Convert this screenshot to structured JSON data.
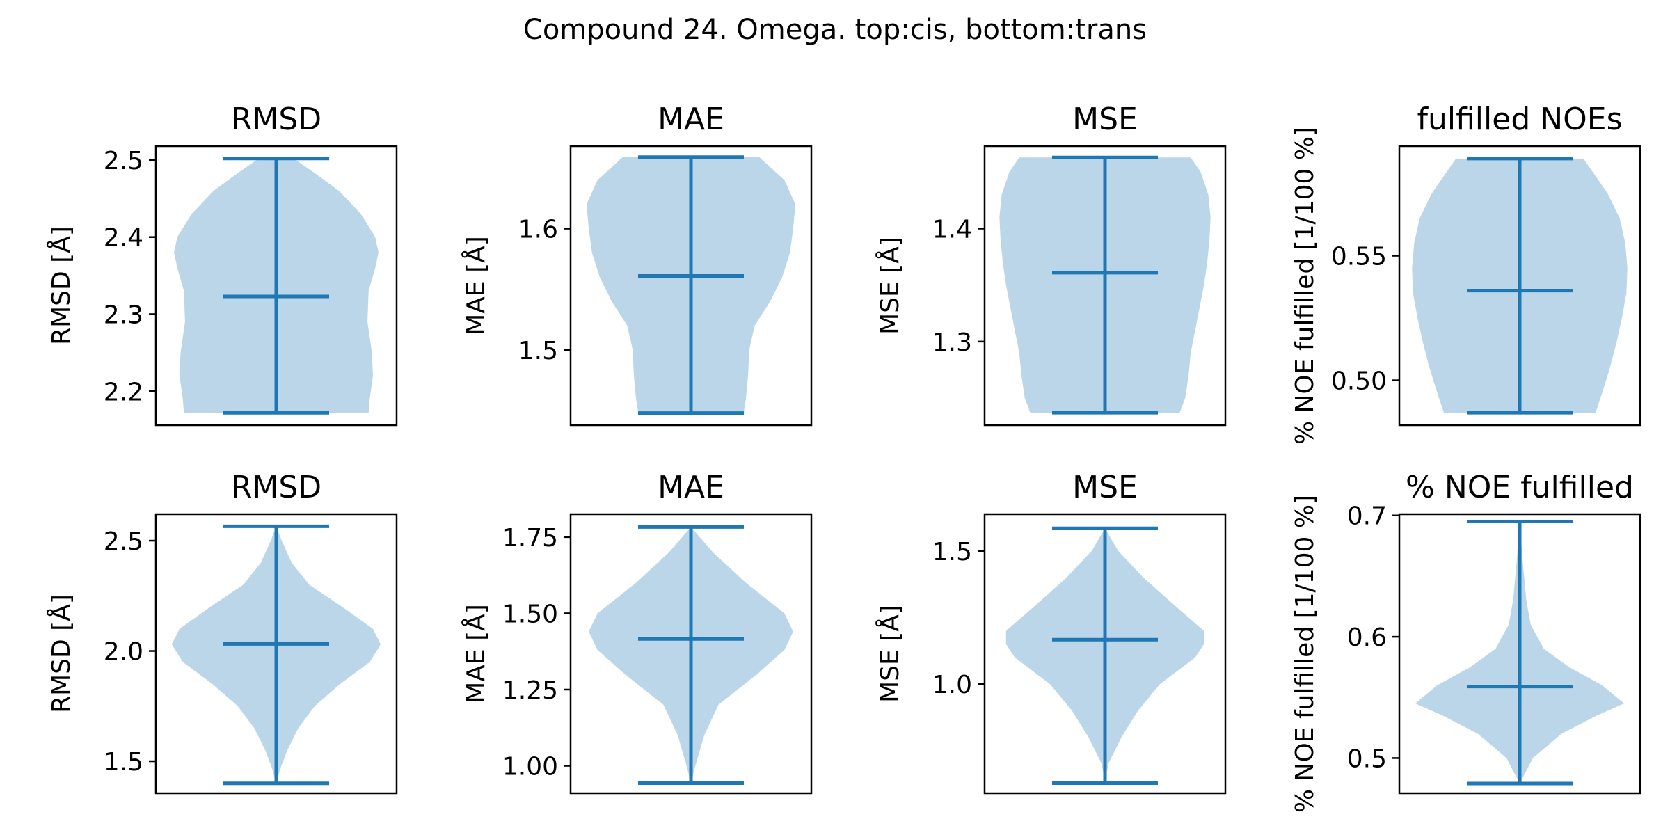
{
  "figure": {
    "title": "Compound 24. Omega. top:cis, bottom:trans"
  },
  "style": {
    "violin_fill": "#1f77b4",
    "violin_fill_opacity": 0.3,
    "line_color": "#1f77b4",
    "axes_color": "#000000"
  },
  "chart_data": [
    {
      "type": "violin",
      "row": "top",
      "title": "RMSD",
      "ylabel": "RMSD [Å]",
      "ylim": [
        2.156,
        2.518
      ],
      "yticks": [
        2.2,
        2.3,
        2.4,
        2.5
      ],
      "ytick_labels": [
        "2.2",
        "2.3",
        "2.4",
        "2.5"
      ],
      "min": 2.172,
      "max": 2.502,
      "mean": 2.323,
      "density": [
        [
          2.172,
          0.84
        ],
        [
          2.19,
          0.85
        ],
        [
          2.22,
          0.88
        ],
        [
          2.25,
          0.87
        ],
        [
          2.29,
          0.83
        ],
        [
          2.33,
          0.84
        ],
        [
          2.36,
          0.9
        ],
        [
          2.38,
          0.93
        ],
        [
          2.4,
          0.9
        ],
        [
          2.43,
          0.77
        ],
        [
          2.46,
          0.57
        ],
        [
          2.48,
          0.38
        ],
        [
          2.502,
          0.16
        ]
      ]
    },
    {
      "type": "violin",
      "row": "top",
      "title": "MAE",
      "ylabel": "MAE [Å]",
      "ylim": [
        1.438,
        1.668
      ],
      "yticks": [
        1.5,
        1.6
      ],
      "ytick_labels": [
        "1.5",
        "1.6"
      ],
      "min": 1.448,
      "max": 1.659,
      "mean": 1.561,
      "density": [
        [
          1.448,
          0.48
        ],
        [
          1.46,
          0.5
        ],
        [
          1.48,
          0.52
        ],
        [
          1.5,
          0.53
        ],
        [
          1.52,
          0.58
        ],
        [
          1.54,
          0.72
        ],
        [
          1.56,
          0.83
        ],
        [
          1.58,
          0.9
        ],
        [
          1.6,
          0.93
        ],
        [
          1.62,
          0.95
        ],
        [
          1.64,
          0.85
        ],
        [
          1.659,
          0.62
        ]
      ]
    },
    {
      "type": "violin",
      "row": "top",
      "title": "MSE",
      "ylabel": "MSE [Å]",
      "ylim": [
        1.226,
        1.473
      ],
      "yticks": [
        1.3,
        1.4
      ],
      "ytick_labels": [
        "1.3",
        "1.4"
      ],
      "min": 1.237,
      "max": 1.463,
      "mean": 1.361,
      "density": [
        [
          1.237,
          0.68
        ],
        [
          1.25,
          0.73
        ],
        [
          1.27,
          0.76
        ],
        [
          1.29,
          0.78
        ],
        [
          1.31,
          0.82
        ],
        [
          1.33,
          0.86
        ],
        [
          1.35,
          0.9
        ],
        [
          1.37,
          0.93
        ],
        [
          1.39,
          0.95
        ],
        [
          1.41,
          0.96
        ],
        [
          1.43,
          0.94
        ],
        [
          1.45,
          0.87
        ],
        [
          1.463,
          0.78
        ]
      ]
    },
    {
      "type": "violin",
      "row": "top",
      "title": "fulfilled NOEs",
      "ylabel": "% NOE fulfilled [1/100 %]",
      "ylim": [
        0.482,
        0.594
      ],
      "yticks": [
        0.5,
        0.55
      ],
      "ytick_labels": [
        "0.50",
        "0.55"
      ],
      "min": 0.487,
      "max": 0.589,
      "mean": 0.536,
      "density": [
        [
          0.487,
          0.69
        ],
        [
          0.495,
          0.75
        ],
        [
          0.505,
          0.82
        ],
        [
          0.515,
          0.88
        ],
        [
          0.525,
          0.93
        ],
        [
          0.535,
          0.97
        ],
        [
          0.545,
          0.98
        ],
        [
          0.555,
          0.96
        ],
        [
          0.565,
          0.91
        ],
        [
          0.575,
          0.8
        ],
        [
          0.589,
          0.58
        ]
      ]
    },
    {
      "type": "violin",
      "row": "bottom",
      "title": "RMSD",
      "ylabel": "RMSD [Å]",
      "ylim": [
        1.355,
        2.62
      ],
      "yticks": [
        1.5,
        2.0,
        2.5
      ],
      "ytick_labels": [
        "1.5",
        "2.0",
        "2.5"
      ],
      "min": 1.4,
      "max": 2.565,
      "mean": 2.032,
      "density": [
        [
          1.4,
          0.0
        ],
        [
          1.47,
          0.04
        ],
        [
          1.55,
          0.1
        ],
        [
          1.65,
          0.2
        ],
        [
          1.75,
          0.35
        ],
        [
          1.85,
          0.58
        ],
        [
          1.95,
          0.85
        ],
        [
          2.03,
          0.95
        ],
        [
          2.1,
          0.88
        ],
        [
          2.2,
          0.6
        ],
        [
          2.3,
          0.3
        ],
        [
          2.4,
          0.14
        ],
        [
          2.5,
          0.05
        ],
        [
          2.565,
          0.0
        ]
      ]
    },
    {
      "type": "violin",
      "row": "bottom",
      "title": "MAE",
      "ylabel": "MAE [Å]",
      "ylim": [
        0.91,
        1.825
      ],
      "yticks": [
        1.0,
        1.25,
        1.5,
        1.75
      ],
      "ytick_labels": [
        "1.00",
        "1.25",
        "1.50",
        "1.75"
      ],
      "min": 0.943,
      "max": 1.783,
      "mean": 1.416,
      "density": [
        [
          0.943,
          0.0
        ],
        [
          1.0,
          0.04
        ],
        [
          1.1,
          0.12
        ],
        [
          1.2,
          0.25
        ],
        [
          1.3,
          0.6
        ],
        [
          1.38,
          0.85
        ],
        [
          1.44,
          0.93
        ],
        [
          1.5,
          0.85
        ],
        [
          1.6,
          0.5
        ],
        [
          1.7,
          0.2
        ],
        [
          1.783,
          0.0
        ]
      ]
    },
    {
      "type": "violin",
      "row": "bottom",
      "title": "MSE",
      "ylabel": "MSE [Å]",
      "ylim": [
        0.59,
        1.638
      ],
      "yticks": [
        1.0,
        1.5
      ],
      "ytick_labels": [
        "1.0",
        "1.5"
      ],
      "min": 0.628,
      "max": 1.585,
      "mean": 1.167,
      "density": [
        [
          0.628,
          0.0
        ],
        [
          0.7,
          0.03
        ],
        [
          0.8,
          0.15
        ],
        [
          0.9,
          0.3
        ],
        [
          1.0,
          0.5
        ],
        [
          1.1,
          0.82
        ],
        [
          1.15,
          0.9
        ],
        [
          1.2,
          0.9
        ],
        [
          1.3,
          0.62
        ],
        [
          1.4,
          0.35
        ],
        [
          1.5,
          0.12
        ],
        [
          1.585,
          0.0
        ]
      ]
    },
    {
      "type": "violin",
      "row": "bottom",
      "title": "% NOE fulfilled",
      "ylabel": "% NOE fulfilled [1/100 %]",
      "ylim": [
        0.471,
        0.701
      ],
      "yticks": [
        0.5,
        0.6,
        0.7
      ],
      "ytick_labels": [
        "0.5",
        "0.6",
        "0.7"
      ],
      "min": 0.479,
      "max": 0.695,
      "mean": 0.559,
      "density": [
        [
          0.479,
          0.0
        ],
        [
          0.5,
          0.12
        ],
        [
          0.52,
          0.38
        ],
        [
          0.535,
          0.7
        ],
        [
          0.545,
          0.95
        ],
        [
          0.56,
          0.75
        ],
        [
          0.575,
          0.45
        ],
        [
          0.59,
          0.22
        ],
        [
          0.61,
          0.1
        ],
        [
          0.63,
          0.06
        ],
        [
          0.66,
          0.03
        ],
        [
          0.695,
          0.0
        ]
      ]
    }
  ]
}
